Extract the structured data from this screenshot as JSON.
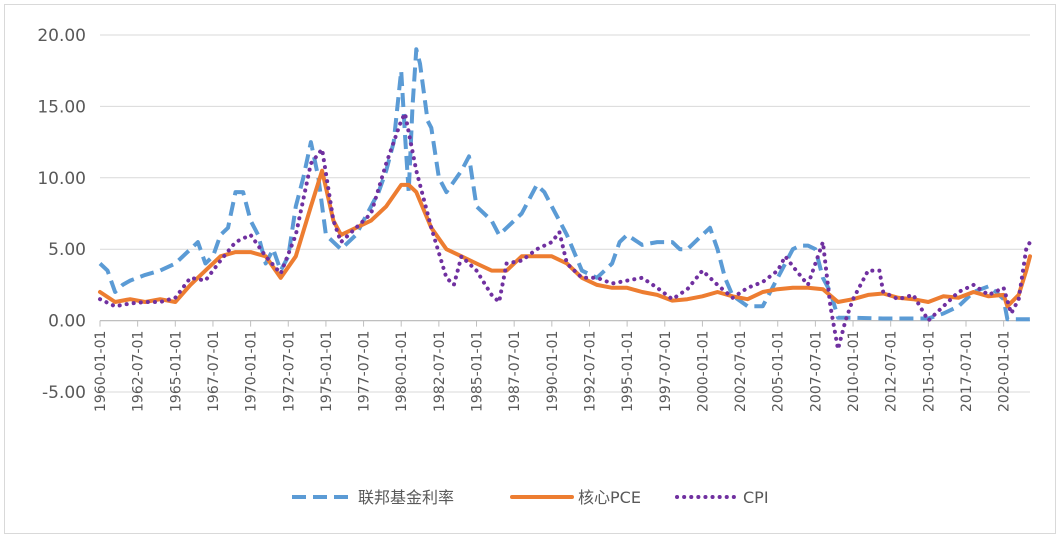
{
  "chart_data": {
    "type": "line",
    "title": "",
    "xlabel": "",
    "ylabel": "",
    "ylim": [
      -5,
      20
    ],
    "y_ticks": [
      "20.00",
      "15.00",
      "10.00",
      "5.00",
      "0.00",
      "-5.00"
    ],
    "x_tick_labels": [
      "1960-01-01",
      "1962-07-01",
      "1965-01-01",
      "1967-07-01",
      "1970-01-01",
      "1972-07-01",
      "1975-01-01",
      "1977-07-01",
      "1980-01-01",
      "1982-07-01",
      "1985-01-01",
      "1987-07-01",
      "1990-01-01",
      "1992-07-01",
      "1995-01-01",
      "1997-07-01",
      "2000-01-01",
      "2002-07-01",
      "2005-01-01",
      "2007-07-01",
      "2010-01-01",
      "2012-07-01",
      "2015-01-01",
      "2017-07-01",
      "2020-01-01"
    ],
    "x_range": [
      1960.0,
      2021.75
    ],
    "gridlines": true,
    "legend_position": "bottom",
    "series": [
      {
        "name": "联邦基金利率",
        "color": "#5b9bd5",
        "style": "dashed",
        "x": [
          1960.0,
          1960.5,
          1961.0,
          1961.5,
          1962.0,
          1963.0,
          1964.0,
          1965.0,
          1966.0,
          1966.5,
          1967.0,
          1967.5,
          1968.0,
          1968.5,
          1969.0,
          1969.5,
          1970.0,
          1970.5,
          1971.0,
          1971.5,
          1972.0,
          1972.5,
          1973.0,
          1973.5,
          1974.0,
          1974.5,
          1975.0,
          1975.5,
          1976.0,
          1977.0,
          1978.0,
          1978.5,
          1979.0,
          1979.5,
          1980.0,
          1980.25,
          1980.5,
          1980.75,
          1981.0,
          1981.25,
          1981.5,
          1981.75,
          1982.0,
          1982.5,
          1983.0,
          1984.0,
          1984.5,
          1985.0,
          1986.0,
          1986.5,
          1987.0,
          1988.0,
          1989.0,
          1989.5,
          1990.0,
          1991.0,
          1992.0,
          1993.0,
          1994.0,
          1994.5,
          1995.0,
          1996.0,
          1997.0,
          1998.0,
          1998.5,
          1999.0,
          2000.0,
          2000.5,
          2001.0,
          2001.5,
          2002.0,
          2003.0,
          2004.0,
          2004.5,
          2005.0,
          2006.0,
          2006.5,
          2007.0,
          2007.5,
          2008.0,
          2008.5,
          2009.0,
          2010.0,
          2012.0,
          2015.0,
          2016.0,
          2017.0,
          2018.0,
          2019.0,
          2019.5,
          2020.0,
          2020.25,
          2021.0,
          2021.75
        ],
        "values": [
          4.0,
          3.5,
          2.0,
          2.5,
          2.8,
          3.2,
          3.5,
          4.0,
          5.0,
          5.5,
          4.0,
          4.5,
          6.0,
          6.5,
          9.0,
          9.0,
          7.0,
          6.0,
          4.0,
          5.0,
          3.5,
          4.5,
          8.0,
          10.0,
          12.5,
          10.0,
          6.0,
          5.5,
          5.0,
          6.0,
          8.0,
          9.0,
          10.5,
          12.5,
          17.5,
          13.0,
          9.0,
          15.0,
          19.0,
          18.0,
          16.0,
          14.0,
          13.5,
          10.0,
          9.0,
          10.5,
          11.5,
          8.0,
          7.0,
          6.0,
          6.5,
          7.5,
          9.5,
          9.0,
          8.0,
          6.0,
          3.5,
          3.0,
          4.0,
          5.5,
          6.0,
          5.3,
          5.5,
          5.5,
          5.0,
          5.0,
          6.0,
          6.5,
          5.0,
          3.0,
          1.75,
          1.0,
          1.0,
          2.0,
          3.0,
          5.0,
          5.25,
          5.25,
          5.0,
          3.0,
          2.0,
          0.2,
          0.2,
          0.15,
          0.15,
          0.5,
          1.0,
          2.0,
          2.4,
          2.0,
          1.5,
          0.1,
          0.1,
          0.1
        ]
      },
      {
        "name": "核心PCE",
        "color": "#ed7d31",
        "style": "solid",
        "x": [
          1960.0,
          1961.0,
          1962.0,
          1963.0,
          1964.0,
          1965.0,
          1966.0,
          1967.0,
          1968.0,
          1969.0,
          1970.0,
          1971.0,
          1972.0,
          1973.0,
          1974.0,
          1974.75,
          1975.5,
          1976.0,
          1977.0,
          1978.0,
          1979.0,
          1980.0,
          1980.5,
          1981.0,
          1982.0,
          1983.0,
          1984.0,
          1985.0,
          1986.0,
          1987.0,
          1988.0,
          1989.0,
          1990.0,
          1991.0,
          1992.0,
          1993.0,
          1994.0,
          1995.0,
          1996.0,
          1997.0,
          1998.0,
          1999.0,
          2000.0,
          2001.0,
          2002.0,
          2003.0,
          2004.0,
          2005.0,
          2006.0,
          2007.0,
          2008.0,
          2009.0,
          2010.0,
          2011.0,
          2012.0,
          2013.0,
          2014.0,
          2015.0,
          2016.0,
          2017.0,
          2018.0,
          2019.0,
          2020.0,
          2020.25,
          2021.0,
          2021.5,
          2021.75
        ],
        "values": [
          2.0,
          1.3,
          1.5,
          1.3,
          1.5,
          1.3,
          2.5,
          3.5,
          4.5,
          4.8,
          4.8,
          4.5,
          3.0,
          4.5,
          8.0,
          10.5,
          7.0,
          6.0,
          6.5,
          7.0,
          8.0,
          9.5,
          9.5,
          9.0,
          6.5,
          5.0,
          4.5,
          4.0,
          3.5,
          3.5,
          4.5,
          4.5,
          4.5,
          4.0,
          3.0,
          2.5,
          2.3,
          2.3,
          2.0,
          1.8,
          1.4,
          1.5,
          1.7,
          2.0,
          1.7,
          1.5,
          2.0,
          2.2,
          2.3,
          2.3,
          2.2,
          1.3,
          1.5,
          1.8,
          1.9,
          1.6,
          1.5,
          1.3,
          1.7,
          1.6,
          2.0,
          1.7,
          1.8,
          1.0,
          1.8,
          3.5,
          4.5
        ]
      },
      {
        "name": "CPI",
        "color": "#7030a0",
        "style": "dotted",
        "x": [
          1960.0,
          1961.0,
          1962.0,
          1963.0,
          1964.0,
          1965.0,
          1966.0,
          1967.0,
          1968.0,
          1969.0,
          1970.0,
          1971.0,
          1972.0,
          1973.0,
          1974.0,
          1974.75,
          1975.5,
          1976.0,
          1977.0,
          1978.0,
          1979.0,
          1980.0,
          1980.25,
          1981.0,
          1982.0,
          1983.0,
          1983.5,
          1984.0,
          1985.0,
          1986.0,
          1986.5,
          1987.0,
          1988.0,
          1989.0,
          1990.0,
          1990.5,
          1991.0,
          1992.0,
          1993.0,
          1994.0,
          1995.0,
          1996.0,
          1997.0,
          1998.0,
          1999.0,
          2000.0,
          2001.0,
          2002.0,
          2003.0,
          2004.0,
          2005.0,
          2005.5,
          2006.0,
          2007.0,
          2008.0,
          2008.5,
          2009.0,
          2009.5,
          2010.0,
          2011.0,
          2011.75,
          2012.0,
          2013.0,
          2014.0,
          2015.0,
          2016.0,
          2017.0,
          2018.0,
          2019.0,
          2020.0,
          2020.5,
          2021.0,
          2021.5,
          2021.75
        ],
        "values": [
          1.5,
          1.0,
          1.2,
          1.3,
          1.3,
          1.6,
          3.0,
          2.8,
          4.2,
          5.5,
          6.0,
          4.5,
          3.3,
          6.0,
          11.0,
          12.0,
          7.0,
          5.5,
          6.5,
          7.5,
          11.0,
          14.0,
          14.5,
          10.5,
          6.5,
          3.0,
          2.5,
          4.5,
          3.5,
          1.8,
          1.3,
          4.0,
          4.2,
          5.0,
          5.5,
          6.2,
          4.0,
          3.0,
          3.0,
          2.6,
          2.8,
          3.0,
          2.3,
          1.5,
          2.2,
          3.5,
          2.5,
          1.6,
          2.3,
          2.7,
          3.5,
          4.5,
          3.8,
          2.5,
          5.5,
          1.0,
          -2.0,
          0.0,
          1.5,
          3.5,
          3.5,
          2.0,
          1.5,
          1.8,
          0.0,
          1.0,
          2.0,
          2.5,
          1.8,
          2.3,
          0.5,
          1.5,
          5.0,
          5.5
        ]
      }
    ]
  }
}
